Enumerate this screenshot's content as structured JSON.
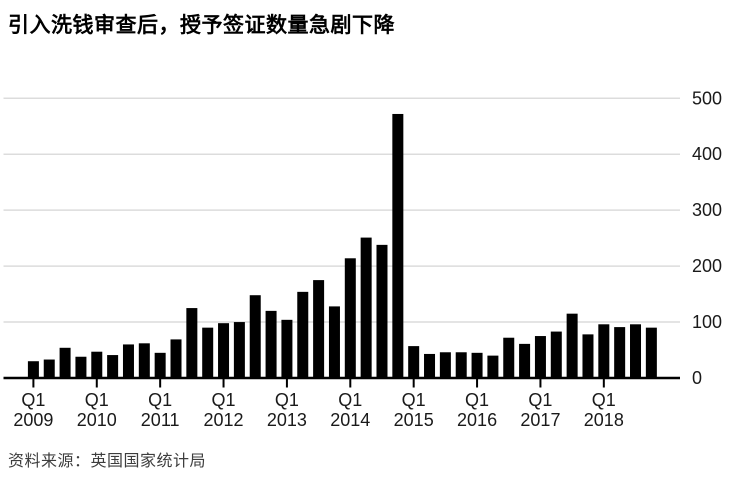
{
  "header": {
    "title": "引入洗钱审查后，授予签证数量急剧下降"
  },
  "source": {
    "label": "资料来源：英国国家统计局"
  },
  "chart_data": {
    "type": "bar",
    "title": "引入洗钱审查后，授予签证数量急剧下降",
    "xlabel": "",
    "ylabel": "",
    "ylim": [
      0,
      500
    ],
    "yticks": [
      0,
      100,
      200,
      300,
      400,
      500
    ],
    "ytick_side": "right",
    "grid": "horizontal",
    "legend": "none",
    "bar_color": "#000000",
    "gridline_color": "#dcdcdc",
    "axis_color": "#000000",
    "categories": [
      "2009-Q1",
      "2009-Q2",
      "2009-Q3",
      "2009-Q4",
      "2010-Q1",
      "2010-Q2",
      "2010-Q3",
      "2010-Q4",
      "2011-Q1",
      "2011-Q2",
      "2011-Q3",
      "2011-Q4",
      "2012-Q1",
      "2012-Q2",
      "2012-Q3",
      "2012-Q4",
      "2013-Q1",
      "2013-Q2",
      "2013-Q3",
      "2013-Q4",
      "2014-Q1",
      "2014-Q2",
      "2014-Q3",
      "2014-Q4",
      "2015-Q1",
      "2015-Q2",
      "2015-Q3",
      "2015-Q4",
      "2016-Q1",
      "2016-Q2",
      "2016-Q3",
      "2016-Q4",
      "2017-Q1",
      "2017-Q2",
      "2017-Q3",
      "2017-Q4",
      "2018-Q1",
      "2018-Q2",
      "2018-Q3",
      "2018-Q4"
    ],
    "values": [
      30,
      33,
      54,
      38,
      47,
      41,
      60,
      62,
      45,
      69,
      125,
      90,
      98,
      100,
      148,
      120,
      104,
      154,
      175,
      128,
      214,
      251,
      238,
      472,
      57,
      43,
      46,
      46,
      45,
      40,
      72,
      61,
      75,
      83,
      115,
      78,
      96,
      91,
      96,
      90
    ],
    "xticks": [
      {
        "quarter": "Q1",
        "year": "2009"
      },
      {
        "quarter": "Q1",
        "year": "2010"
      },
      {
        "quarter": "Q1",
        "year": "2011"
      },
      {
        "quarter": "Q1",
        "year": "2012"
      },
      {
        "quarter": "Q1",
        "year": "2013"
      },
      {
        "quarter": "Q1",
        "year": "2014"
      },
      {
        "quarter": "Q1",
        "year": "2015"
      },
      {
        "quarter": "Q1",
        "year": "2016"
      },
      {
        "quarter": "Q1",
        "year": "2017"
      },
      {
        "quarter": "Q1",
        "year": "2018"
      }
    ]
  }
}
